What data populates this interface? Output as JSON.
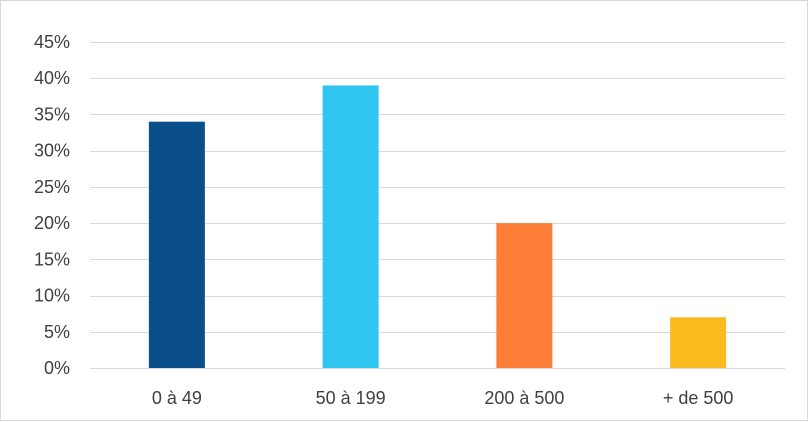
{
  "chart_data": {
    "type": "bar",
    "title": "",
    "xlabel": "",
    "ylabel": "",
    "categories": [
      "0 à 49",
      "50 à 199",
      "200 à 500",
      "+ de 500"
    ],
    "values": [
      34,
      39,
      20,
      7
    ],
    "value_format": "percent",
    "ylim": [
      0,
      45
    ],
    "yticks": [
      0,
      5,
      10,
      15,
      20,
      25,
      30,
      35,
      40,
      45
    ],
    "ytick_labels": [
      "0%",
      "5%",
      "10%",
      "15%",
      "20%",
      "25%",
      "30%",
      "35%",
      "40%",
      "45%"
    ],
    "bar_colors": [
      "#0b4f8a",
      "#2ec5f0",
      "#fb7d38",
      "#fbbb1e"
    ],
    "grid": true,
    "gridline_color": "#d9d9d9",
    "legend": "none"
  }
}
